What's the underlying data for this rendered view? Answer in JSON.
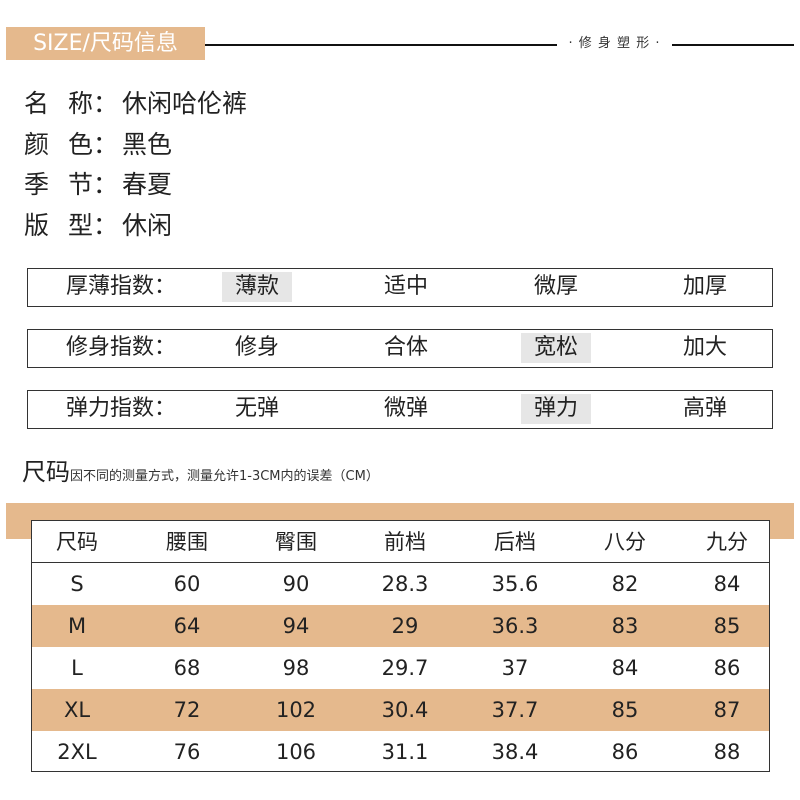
{
  "header": {
    "badge": "SIZE/尺码信息",
    "tag": "· 修 身 塑 形 ·"
  },
  "info": [
    {
      "k1": "名",
      "k2": "称：",
      "value": "休闲哈伦裤"
    },
    {
      "k1": "颜",
      "k2": "色：",
      "value": "黑色"
    },
    {
      "k1": "季",
      "k2": "节：",
      "value": "春夏"
    },
    {
      "k1": "版",
      "k2": "型：",
      "value": "休闲"
    }
  ],
  "indices": [
    {
      "label": "厚薄指数：",
      "options": [
        "薄款",
        "适中",
        "微厚",
        "加厚"
      ],
      "selected": 0
    },
    {
      "label": "修身指数：",
      "options": [
        "修身",
        "合体",
        "宽松",
        "加大"
      ],
      "selected": 2
    },
    {
      "label": "弹力指数：",
      "options": [
        "无弹",
        "微弹",
        "弹力",
        "高弹"
      ],
      "selected": 2
    }
  ],
  "size_note": {
    "title": "尺码",
    "text": "因不同的测量方式，测量允许1-3CM内的误差（CM）"
  },
  "size_table": {
    "headers": [
      "尺码",
      "腰围",
      "臀围",
      "前档",
      "后档",
      "八分",
      "九分"
    ],
    "rows": [
      [
        "S",
        "60",
        "90",
        "28.3",
        "35.6",
        "82",
        "84"
      ],
      [
        "M",
        "64",
        "94",
        "29",
        "36.3",
        "83",
        "85"
      ],
      [
        "L",
        "68",
        "98",
        "29.7",
        "37",
        "84",
        "86"
      ],
      [
        "XL",
        "72",
        "102",
        "30.4",
        "37.7",
        "85",
        "87"
      ],
      [
        "2XL",
        "76",
        "106",
        "31.1",
        "38.4",
        "86",
        "88"
      ]
    ],
    "shaded_rows": [
      1,
      3
    ]
  },
  "colors": {
    "accent": "#e5b98d",
    "selected_bg": "#e6e6e6",
    "border": "#333333"
  }
}
